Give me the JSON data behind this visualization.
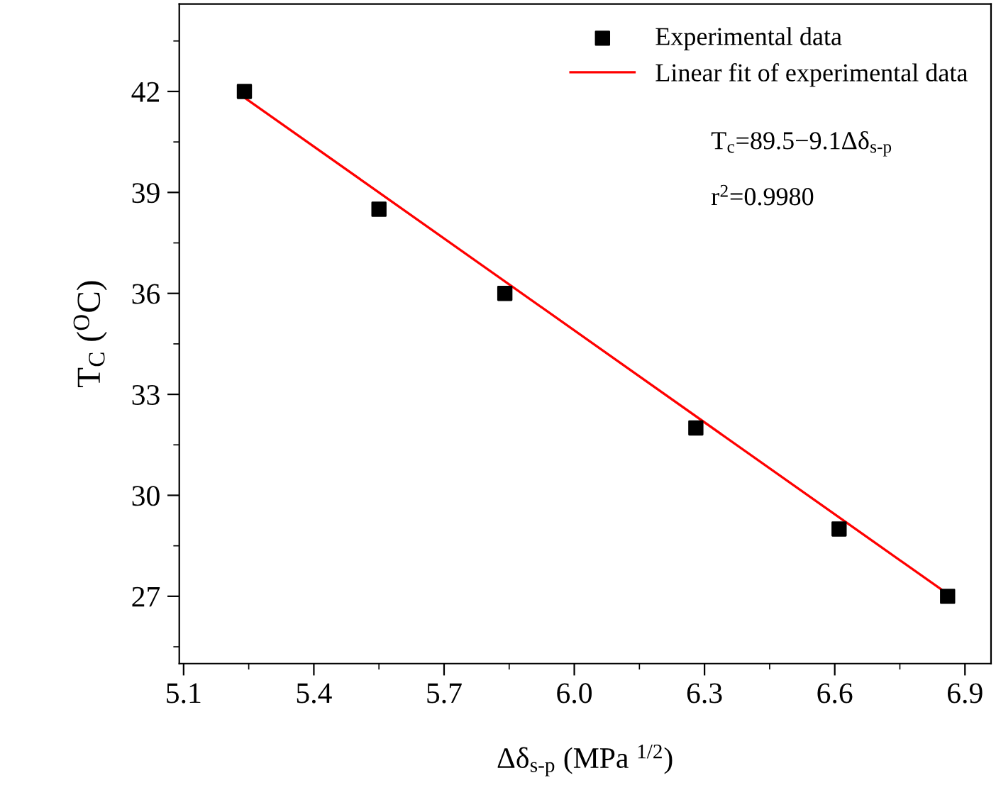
{
  "chart_data": {
    "type": "scatter",
    "xlabel": "Δδ$_{s-p}$ (MPa $^{1/2}$)",
    "ylabel": "T$_{C}$ ($^{O}$C)",
    "series": [
      {
        "name": "Experimental data",
        "color": "#000000",
        "marker": "square",
        "x": [
          5.24,
          5.55,
          5.84,
          6.28,
          6.61,
          6.86
        ],
        "values": [
          42,
          38.5,
          36,
          32,
          29,
          27
        ]
      },
      {
        "name": "Linear fit of experimental data",
        "type": "line",
        "color": "#ff0000",
        "line_style": "solid",
        "x": [
          5.24,
          6.86
        ],
        "values": [
          41.82,
          27.07
        ]
      }
    ],
    "annotations": [
      "T$_{c}$=89.5−9.1Δδ$_{s-p}$",
      "r$^{2}$=0.9980"
    ],
    "xlim": [
      5.09,
      6.96
    ],
    "ylim": [
      25,
      44.6
    ],
    "xticks": [
      5.1,
      5.4,
      5.7,
      {
        "value": 6,
        "label": "6.0"
      },
      6.3,
      6.6,
      6.9
    ],
    "yticks": [
      27,
      30,
      33,
      36,
      39,
      42
    ],
    "grid": false,
    "legend": "top right"
  }
}
